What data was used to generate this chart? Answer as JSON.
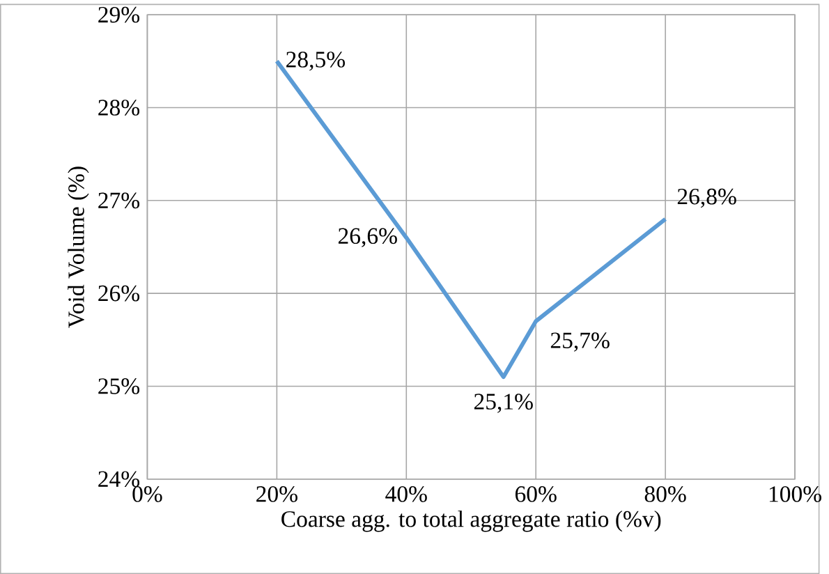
{
  "chart_data": {
    "type": "line",
    "xlabel": "Coarse agg. to total aggregate ratio (%v)",
    "ylabel": "Void Volume (%)",
    "x": [
      20,
      40,
      55,
      60,
      80
    ],
    "series": [
      {
        "color": "#5b9bd5",
        "values": [
          28.5,
          26.6,
          25.1,
          25.7,
          26.8
        ],
        "value_labels": [
          "28,5%",
          "26,6%",
          "25,1%",
          "25,7%",
          "26,8%"
        ]
      }
    ],
    "xlim": [
      0,
      100
    ],
    "ylim": [
      24,
      29
    ],
    "xticks": [
      {
        "value": 0,
        "label": "0%"
      },
      {
        "value": 20,
        "label": "20%"
      },
      {
        "value": 40,
        "label": "40%"
      },
      {
        "value": 60,
        "label": "60%"
      },
      {
        "value": 80,
        "label": "80%"
      },
      {
        "value": 100,
        "label": "100%"
      }
    ],
    "yticks": [
      {
        "value": 24,
        "label": "24%"
      },
      {
        "value": 25,
        "label": "25%"
      },
      {
        "value": 26,
        "label": "26%"
      },
      {
        "value": 27,
        "label": "27%"
      },
      {
        "value": 28,
        "label": "28%"
      },
      {
        "value": 29,
        "label": "29%"
      }
    ],
    "grid": true,
    "marker": "none",
    "line_style": "solid"
  }
}
